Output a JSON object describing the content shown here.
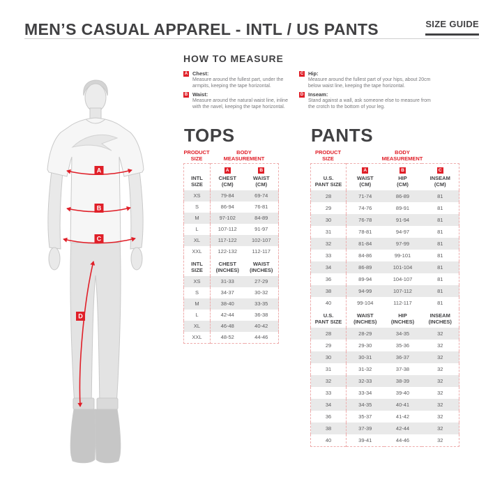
{
  "header": {
    "title": "MEN’S CASUAL APPAREL - INTL / US PANTS",
    "size_guide_label": "SIZE GUIDE"
  },
  "colors": {
    "accent_red": "#e01f28",
    "heading_dark": "#414143",
    "row_gray": "#e9e9e9"
  },
  "how_to_measure": {
    "heading": "HOW TO MEASURE",
    "items": [
      {
        "letter": "A",
        "label": "Chest:",
        "text": "Measure around the fullest part, under the armpits, keeping the tape horizontal."
      },
      {
        "letter": "B",
        "label": "Waist:",
        "text": "Measure around the natural waist line, inline with the navel, keeping the tape horizontal."
      },
      {
        "letter": "C",
        "label": "Hip:",
        "text": "Measure around the fullest part of your hips, about 20cm below waist line, keeping the tape horizontal."
      },
      {
        "letter": "D",
        "label": "Inseam:",
        "text": "Stand against a wall, ask someone else to measure from the crotch to the bottom of your leg."
      }
    ]
  },
  "figure": {
    "markers": [
      "A",
      "B",
      "C",
      "D"
    ]
  },
  "tops": {
    "heading": "TOPS",
    "group_headers": [
      "PRODUCT\nSIZE",
      "BODY\nMEASUREMENT"
    ],
    "cm": {
      "badges": [
        "A",
        "B"
      ],
      "columns": [
        "INTL\nSIZE",
        "CHEST\n(CM)",
        "WAIST\n(CM)"
      ],
      "rows": [
        [
          "XS",
          "79-84",
          "69-74"
        ],
        [
          "S",
          "86-94",
          "76-81"
        ],
        [
          "M",
          "97-102",
          "84-89"
        ],
        [
          "L",
          "107-112",
          "91-97"
        ],
        [
          "XL",
          "117-122",
          "102-107"
        ],
        [
          "XXL",
          "122-132",
          "112-117"
        ]
      ]
    },
    "inches": {
      "columns": [
        "INTL\nSIZE",
        "CHEST\n(INCHES)",
        "WAIST\n(INCHES)"
      ],
      "rows": [
        [
          "XS",
          "31-33",
          "27-29"
        ],
        [
          "S",
          "34-37",
          "30-32"
        ],
        [
          "M",
          "38-40",
          "33-35"
        ],
        [
          "L",
          "42-44",
          "36-38"
        ],
        [
          "XL",
          "46-48",
          "40-42"
        ],
        [
          "XXL",
          "48-52",
          "44-46"
        ]
      ]
    }
  },
  "pants": {
    "heading": "PANTS",
    "group_headers": [
      "PRODUCT\nSIZE",
      "BODY\nMEASUREMENT"
    ],
    "cm": {
      "badges": [
        "A",
        "B",
        "C"
      ],
      "columns": [
        "U.S.\nPANT SIZE",
        "WAIST\n(CM)",
        "HIP\n(CM)",
        "INSEAM\n(CM)"
      ],
      "rows": [
        [
          "28",
          "71-74",
          "86-89",
          "81"
        ],
        [
          "29",
          "74-76",
          "89-91",
          "81"
        ],
        [
          "30",
          "76-78",
          "91-94",
          "81"
        ],
        [
          "31",
          "78-81",
          "94-97",
          "81"
        ],
        [
          "32",
          "81-84",
          "97-99",
          "81"
        ],
        [
          "33",
          "84-86",
          "99-101",
          "81"
        ],
        [
          "34",
          "86-89",
          "101-104",
          "81"
        ],
        [
          "36",
          "89-94",
          "104-107",
          "81"
        ],
        [
          "38",
          "94-99",
          "107-112",
          "81"
        ],
        [
          "40",
          "99-104",
          "112-117",
          "81"
        ]
      ]
    },
    "inches": {
      "columns": [
        "U.S.\nPANT SIZE",
        "WAIST\n(INCHES)",
        "HIP\n(INCHES)",
        "INSEAM\n(INCHES)"
      ],
      "rows": [
        [
          "28",
          "28-29",
          "34-35",
          "32"
        ],
        [
          "29",
          "29-30",
          "35-36",
          "32"
        ],
        [
          "30",
          "30-31",
          "36-37",
          "32"
        ],
        [
          "31",
          "31-32",
          "37-38",
          "32"
        ],
        [
          "32",
          "32-33",
          "38-39",
          "32"
        ],
        [
          "33",
          "33-34",
          "39-40",
          "32"
        ],
        [
          "34",
          "34-35",
          "40-41",
          "32"
        ],
        [
          "36",
          "35-37",
          "41-42",
          "32"
        ],
        [
          "38",
          "37-39",
          "42-44",
          "32"
        ],
        [
          "40",
          "39-41",
          "44-46",
          "32"
        ]
      ]
    }
  }
}
